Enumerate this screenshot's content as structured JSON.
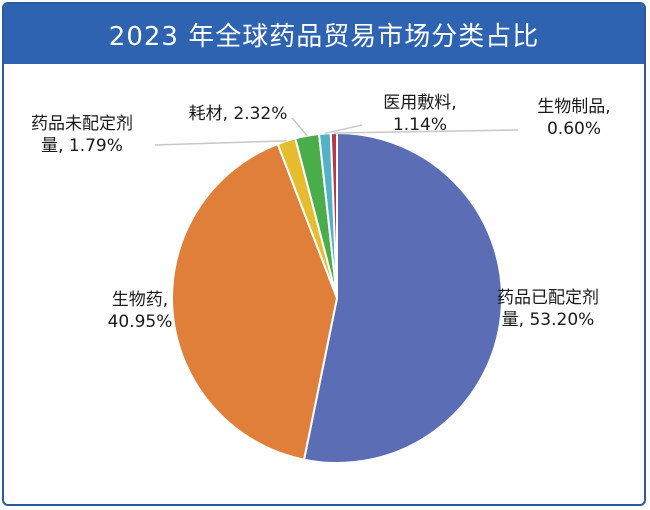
{
  "title": "2023 年全球药品贸易市场分类占比",
  "colors": {
    "header_bg": "#2e63b1",
    "border": "#2a5a9e"
  },
  "chart_data": {
    "type": "pie",
    "title": "2023 年全球药品贸易市场分类占比",
    "slices": [
      {
        "name": "药品已配定剂量",
        "value": 53.2,
        "label_lines": [
          "药品已配定剂",
          "量, 53.20%"
        ],
        "color": "#5b6db4"
      },
      {
        "name": "生物药",
        "value": 40.95,
        "label_lines": [
          "生物药,",
          "40.95%"
        ],
        "color": "#e07f3a"
      },
      {
        "name": "药品未配定剂量",
        "value": 1.79,
        "label_lines": [
          "药品未配定剂",
          "量, 1.79%"
        ],
        "color": "#e5bd2f"
      },
      {
        "name": "耗材",
        "value": 2.32,
        "label_lines": [
          "耗材, 2.32%"
        ],
        "color": "#49ad4a"
      },
      {
        "name": "医用敷料",
        "value": 1.14,
        "label_lines": [
          "医用敷料,",
          "1.14%"
        ],
        "color": "#52b3c7"
      },
      {
        "name": "生物制品",
        "value": 0.6,
        "label_lines": [
          "生物制品,",
          "0.60%"
        ],
        "color": "#b23a4a"
      }
    ]
  }
}
